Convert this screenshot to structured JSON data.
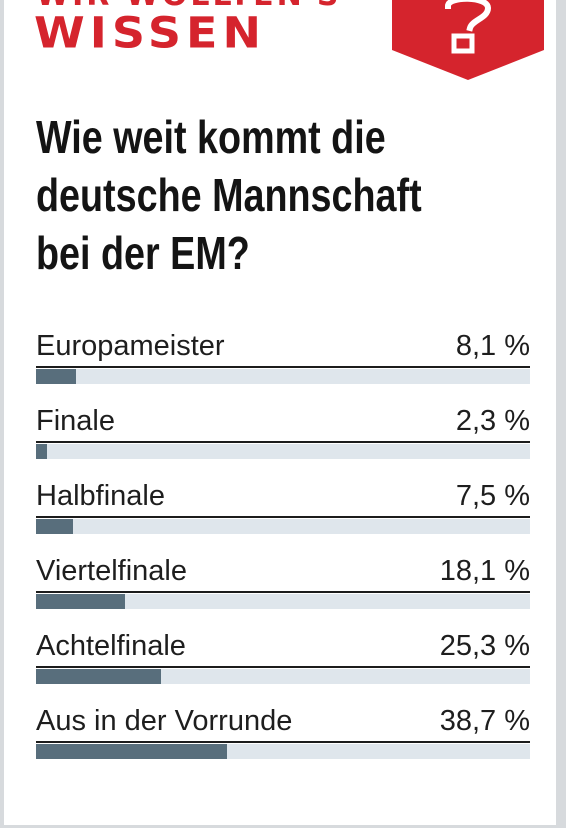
{
  "header": {
    "kicker": "WIR WOLLTEN'S",
    "brand": "WISSEN",
    "accent_color": "#d5242d",
    "badge_icon": "question-mark-icon"
  },
  "question": "Wie weit kommt die deutsche Mannschaft bei der EM?",
  "chart_data": {
    "type": "bar",
    "title": "Wie weit kommt die deutsche Mannschaft bei der EM?",
    "categories": [
      "Europameister",
      "Finale",
      "Halbfinale",
      "Viertelfinale",
      "Achtelfinale",
      "Aus in der Vorrunde"
    ],
    "values": [
      8.1,
      2.3,
      7.5,
      18.1,
      25.3,
      38.7
    ],
    "value_labels": [
      "8,1 %",
      "2,3 %",
      "7,5 %",
      "18,1 %",
      "25,3 %",
      "38,7 %"
    ],
    "unit": "%",
    "xlim": [
      0,
      100
    ],
    "bar_color": "#586e7c",
    "track_color": "#dfe6ec",
    "orientation": "horizontal",
    "grid": false,
    "legend": "none"
  }
}
